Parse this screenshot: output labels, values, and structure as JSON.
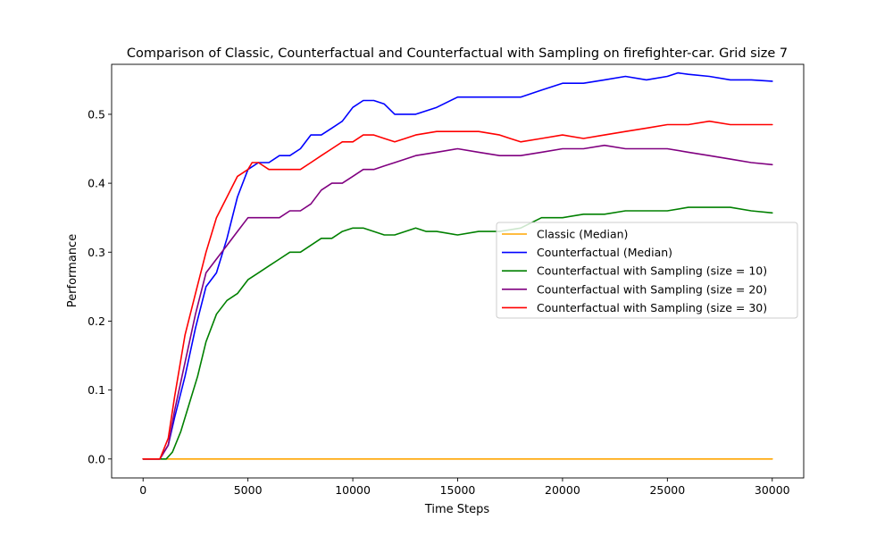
{
  "chart_data": {
    "type": "line",
    "title": "Comparison of Classic, Counterfactual and Counterfactual with Sampling on firefighter-car. Grid size 7",
    "xlabel": "Time Steps",
    "ylabel": "Performance",
    "xlim": [
      -1500,
      31500
    ],
    "ylim": [
      -0.0275,
      0.5725
    ],
    "xticks": [
      0,
      5000,
      10000,
      15000,
      20000,
      25000,
      30000
    ],
    "xtick_labels": [
      "0",
      "5000",
      "10000",
      "15000",
      "20000",
      "25000",
      "30000"
    ],
    "yticks": [
      0.0,
      0.1,
      0.2,
      0.3,
      0.4,
      0.5
    ],
    "ytick_labels": [
      "0.0",
      "0.1",
      "0.2",
      "0.3",
      "0.4",
      "0.5"
    ],
    "grid": false,
    "legend_position": "center-right",
    "series": [
      {
        "name": "Classic (Median)",
        "color": "#ffa500",
        "x": [
          0,
          30000
        ],
        "y": [
          0.0,
          0.0
        ]
      },
      {
        "name": "Counterfactual (Median)",
        "color": "#0000ff",
        "x": [
          0,
          800,
          1200,
          1500,
          2000,
          2500,
          3000,
          3500,
          4000,
          4500,
          5000,
          5500,
          6000,
          6500,
          7000,
          7500,
          8000,
          8500,
          9000,
          9500,
          10000,
          10500,
          11000,
          11500,
          12000,
          12500,
          13000,
          14000,
          15000,
          16000,
          17000,
          18000,
          19000,
          20000,
          21000,
          22000,
          23000,
          24000,
          25000,
          25500,
          26000,
          27000,
          28000,
          29000,
          30000
        ],
        "y": [
          0.0,
          0.0,
          0.02,
          0.06,
          0.12,
          0.19,
          0.25,
          0.27,
          0.32,
          0.38,
          0.42,
          0.43,
          0.43,
          0.44,
          0.44,
          0.45,
          0.47,
          0.47,
          0.48,
          0.49,
          0.51,
          0.52,
          0.52,
          0.515,
          0.5,
          0.5,
          0.5,
          0.51,
          0.525,
          0.525,
          0.525,
          0.525,
          0.535,
          0.545,
          0.545,
          0.55,
          0.555,
          0.55,
          0.555,
          0.56,
          0.558,
          0.555,
          0.55,
          0.55,
          0.548
        ]
      },
      {
        "name": "Counterfactual with Sampling (size = 10)",
        "color": "#008000",
        "x": [
          0,
          1100,
          1400,
          1800,
          2200,
          2600,
          3000,
          3500,
          4000,
          4500,
          5000,
          5500,
          6000,
          6500,
          7000,
          7500,
          8000,
          8500,
          9000,
          9500,
          10000,
          10500,
          11000,
          11500,
          12000,
          12500,
          13000,
          13500,
          14000,
          15000,
          16000,
          17000,
          18000,
          19000,
          20000,
          21000,
          22000,
          23000,
          24000,
          25000,
          26000,
          27000,
          28000,
          29000,
          30000
        ],
        "y": [
          0.0,
          0.0,
          0.01,
          0.04,
          0.08,
          0.12,
          0.17,
          0.21,
          0.23,
          0.24,
          0.26,
          0.27,
          0.28,
          0.29,
          0.3,
          0.3,
          0.31,
          0.32,
          0.32,
          0.33,
          0.335,
          0.335,
          0.33,
          0.325,
          0.325,
          0.33,
          0.335,
          0.33,
          0.33,
          0.325,
          0.33,
          0.33,
          0.335,
          0.35,
          0.35,
          0.355,
          0.355,
          0.36,
          0.36,
          0.36,
          0.365,
          0.365,
          0.365,
          0.36,
          0.357
        ]
      },
      {
        "name": "Counterfactual with Sampling (size = 20)",
        "color": "#800080",
        "x": [
          0,
          800,
          1200,
          1500,
          2000,
          2500,
          3000,
          3500,
          4000,
          4500,
          5000,
          5500,
          6000,
          6500,
          7000,
          7500,
          8000,
          8500,
          9000,
          9500,
          10000,
          10500,
          11000,
          11500,
          12000,
          12500,
          13000,
          14000,
          15000,
          16000,
          17000,
          18000,
          19000,
          20000,
          21000,
          22000,
          23000,
          24000,
          25000,
          26000,
          27000,
          28000,
          29000,
          30000
        ],
        "y": [
          0.0,
          0.0,
          0.02,
          0.07,
          0.14,
          0.21,
          0.27,
          0.29,
          0.31,
          0.33,
          0.35,
          0.35,
          0.35,
          0.35,
          0.36,
          0.36,
          0.37,
          0.39,
          0.4,
          0.4,
          0.41,
          0.42,
          0.42,
          0.425,
          0.43,
          0.435,
          0.44,
          0.445,
          0.45,
          0.445,
          0.44,
          0.44,
          0.445,
          0.45,
          0.45,
          0.455,
          0.45,
          0.45,
          0.45,
          0.445,
          0.44,
          0.435,
          0.43,
          0.427
        ]
      },
      {
        "name": "Counterfactual with Sampling (size = 30)",
        "color": "#ff0000",
        "x": [
          0,
          800,
          1200,
          1500,
          2000,
          2500,
          3000,
          3500,
          4000,
          4500,
          5000,
          5200,
          5500,
          6000,
          6500,
          7000,
          7500,
          8000,
          8500,
          9000,
          9500,
          10000,
          10500,
          11000,
          11500,
          12000,
          12500,
          13000,
          14000,
          15000,
          16000,
          17000,
          17500,
          18000,
          19000,
          20000,
          21000,
          22000,
          23000,
          24000,
          25000,
          26000,
          27000,
          28000,
          29000,
          30000
        ],
        "y": [
          0.0,
          0.0,
          0.03,
          0.09,
          0.18,
          0.24,
          0.3,
          0.35,
          0.38,
          0.41,
          0.42,
          0.43,
          0.43,
          0.42,
          0.42,
          0.42,
          0.42,
          0.43,
          0.44,
          0.45,
          0.46,
          0.46,
          0.47,
          0.47,
          0.465,
          0.46,
          0.465,
          0.47,
          0.475,
          0.475,
          0.475,
          0.47,
          0.465,
          0.46,
          0.465,
          0.47,
          0.465,
          0.47,
          0.475,
          0.48,
          0.485,
          0.485,
          0.49,
          0.485,
          0.485,
          0.485
        ]
      }
    ]
  }
}
